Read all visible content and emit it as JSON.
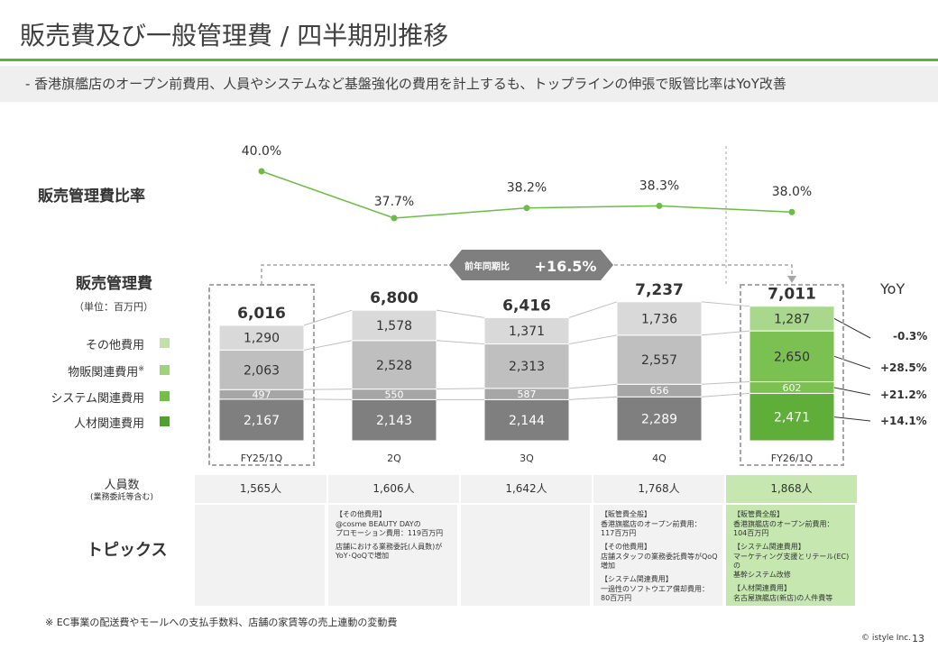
{
  "header": {
    "title": "販売費及び一般管理費 / 四半期別推移",
    "subtitle": "-  香港旗艦店のオープン前費用、人員やシステムなど基盤強化の費用を計上するも、トップラインの伸張で販管比率はYoY改善"
  },
  "ratio_label": "販売管理費比率",
  "sga_label": "販売管理費",
  "sga_unit": "（単位：百万円）",
  "yoy_header": "YoY",
  "yoy_badge": {
    "prefix": "前年同期比",
    "value": "+16.5%"
  },
  "legend": [
    {
      "label": "その他費用",
      "color": "#bfe3a5"
    },
    {
      "label": "物販関連費用",
      "note": "※",
      "color": "#9dd47a"
    },
    {
      "label": "システム関連費用",
      "color": "#74c046"
    },
    {
      "label": "人材関連費用",
      "color": "#4ea22e"
    }
  ],
  "colors": {
    "accent": "#5cb531",
    "line": "#6cbd45",
    "gray_dark": "#7f7f7f",
    "gray_mid": "#a6a6a6",
    "gray_light": "#bfbfbf",
    "gray_top": "#d9d9d9",
    "green_dark": "#5fae3a",
    "green_mid": "#7ac151",
    "green_light": "#a9d88c",
    "highlight": "#c6e8b0"
  },
  "chart_data": {
    "type": "bar",
    "subtype": "stacked_with_line",
    "categories": [
      "FY25/1Q",
      "2Q",
      "3Q",
      "4Q",
      "FY26/1Q"
    ],
    "series": [
      {
        "name": "人材関連費用",
        "values": [
          2167,
          2143,
          2144,
          2289,
          2471
        ],
        "labels": [
          "2,167",
          "2,143",
          "2,144",
          "2,289",
          "2,471"
        ]
      },
      {
        "name": "システム関連費用",
        "values": [
          497,
          550,
          587,
          656,
          602
        ],
        "labels": [
          "497",
          "550",
          "587",
          "656",
          "602"
        ]
      },
      {
        "name": "物販関連費用",
        "values": [
          2063,
          2528,
          2313,
          2557,
          2650
        ],
        "labels": [
          "2,063",
          "2,528",
          "2,313",
          "2,557",
          "2,650"
        ]
      },
      {
        "name": "その他費用",
        "values": [
          1290,
          1578,
          1371,
          1736,
          1287
        ],
        "labels": [
          "1,290",
          "1,578",
          "1,371",
          "1,736",
          "1,287"
        ]
      }
    ],
    "totals": [
      6016,
      6800,
      6416,
      7237,
      7011
    ],
    "total_labels": [
      "6,016",
      "6,800",
      "6,416",
      "7,237",
      "7,011"
    ],
    "ratio": {
      "name": "販売管理費比率",
      "values": [
        40.0,
        37.7,
        38.2,
        38.3,
        38.0
      ],
      "labels": [
        "40.0%",
        "37.7%",
        "38.2%",
        "38.3%",
        "38.0%"
      ]
    },
    "yoy": [
      "-0.3%",
      "+28.5%",
      "+21.2%",
      "+14.1%"
    ],
    "highlight_index": 4
  },
  "headcount": {
    "label": "人員数",
    "sublabel": "(業務委託等含む)",
    "values": [
      "1,565人",
      "1,606人",
      "1,642人",
      "1,768人",
      "1,868人"
    ]
  },
  "topics": {
    "label": "トピックス",
    "cells": [
      [],
      [
        "【その他費用】",
        "@cosme BEAUTY DAYの\nプロモーション費用：119百万円",
        "店舗における業務委託(人員数)が\nYoY･QoQで増加"
      ],
      [],
      [
        "【販管費全般】",
        "香港旗艦店のオープン前費用：\n117百万円",
        "【その他費用】",
        "店舗スタッフの業務委託費等がQoQ\n増加",
        "【システム関連費用】",
        "一過性のソフトウエア償却費用：\n80百万円"
      ],
      [
        "【販管費全般】",
        "香港旗艦店のオープン前費用：\n104百万円",
        "【システム関連費用】",
        "マーケティング支援とリテール(EC)の\n基幹システム改修",
        "【人材関連費用】",
        "名古屋旗艦店(新店)の人件費等"
      ]
    ]
  },
  "footnote": "※  EC事業の配送費やモールへの支払手数料、店舗の家賃等の売上連動の変動費",
  "copyright": "© istyle Inc.",
  "page_number": "13"
}
